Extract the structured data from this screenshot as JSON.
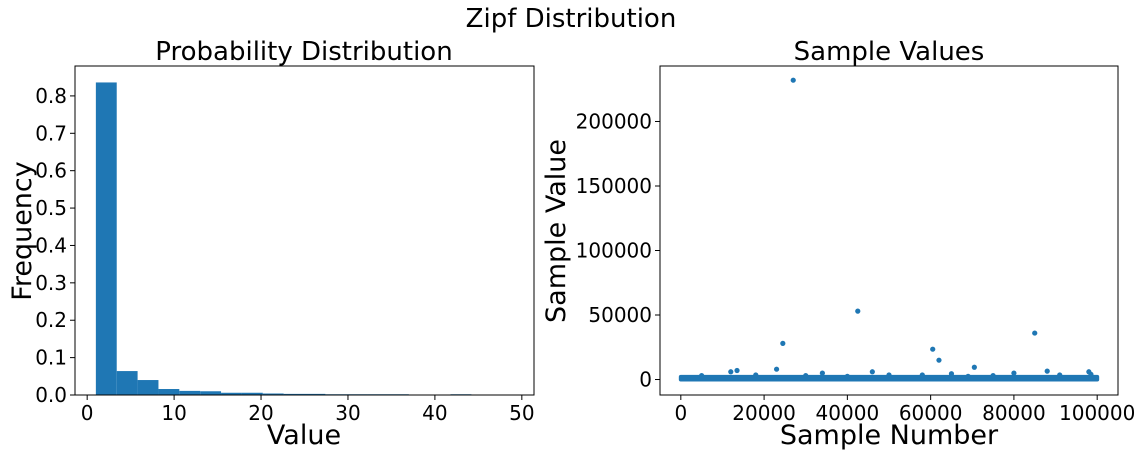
{
  "figure": {
    "suptitle": "Zipf Distribution",
    "series_color": "#1f77b4"
  },
  "chart_data": [
    {
      "type": "bar",
      "title": "Probability Distribution",
      "xlabel": "Value",
      "ylabel": "Frequency",
      "xlim": [
        -1.4,
        51.4
      ],
      "ylim": [
        0,
        0.88
      ],
      "xticks": [
        0,
        10,
        20,
        30,
        40,
        50
      ],
      "yticks": [
        0.0,
        0.1,
        0.2,
        0.3,
        0.4,
        0.5,
        0.6,
        0.7,
        0.8
      ],
      "bins": [
        {
          "x0": 1.0,
          "x1": 3.4,
          "value": 0.836
        },
        {
          "x0": 3.4,
          "x1": 5.8,
          "value": 0.064
        },
        {
          "x0": 5.8,
          "x1": 8.2,
          "value": 0.04
        },
        {
          "x0": 8.2,
          "x1": 10.6,
          "value": 0.016
        },
        {
          "x0": 10.6,
          "x1": 13.0,
          "value": 0.011
        },
        {
          "x0": 13.0,
          "x1": 15.4,
          "value": 0.01
        },
        {
          "x0": 15.4,
          "x1": 17.8,
          "value": 0.006
        },
        {
          "x0": 17.8,
          "x1": 20.2,
          "value": 0.006
        },
        {
          "x0": 20.2,
          "x1": 22.6,
          "value": 0.004
        },
        {
          "x0": 22.6,
          "x1": 25.0,
          "value": 0.003
        },
        {
          "x0": 25.0,
          "x1": 27.4,
          "value": 0.003
        },
        {
          "x0": 27.4,
          "x1": 29.8,
          "value": 0.002
        },
        {
          "x0": 29.8,
          "x1": 32.2,
          "value": 0.002
        },
        {
          "x0": 32.2,
          "x1": 34.6,
          "value": 0.002
        },
        {
          "x0": 34.6,
          "x1": 37.0,
          "value": 0.002
        },
        {
          "x0": 37.0,
          "x1": 39.4,
          "value": 0.001
        },
        {
          "x0": 39.4,
          "x1": 41.8,
          "value": 0.001
        },
        {
          "x0": 41.8,
          "x1": 44.2,
          "value": 0.002
        },
        {
          "x0": 44.2,
          "x1": 46.6,
          "value": 0.001
        },
        {
          "x0": 46.6,
          "x1": 49.0,
          "value": 0.001
        }
      ]
    },
    {
      "type": "scatter",
      "title": "Sample Values",
      "xlabel": "Sample Number",
      "ylabel": "Sample Value",
      "xlim": [
        -5000,
        105000
      ],
      "ylim": [
        -12000,
        243000
      ],
      "xticks": [
        0,
        20000,
        40000,
        60000,
        80000,
        100000
      ],
      "yticks": [
        0,
        50000,
        100000,
        150000,
        200000
      ],
      "points": [
        [
          27000,
          232000
        ],
        [
          42500,
          53000
        ],
        [
          85000,
          36000
        ],
        [
          24500,
          28000
        ],
        [
          60500,
          23500
        ],
        [
          62000,
          15000
        ],
        [
          70500,
          9500
        ],
        [
          23000,
          8000
        ],
        [
          12000,
          6000
        ],
        [
          13500,
          7000
        ],
        [
          34000,
          5000
        ],
        [
          46000,
          6000
        ],
        [
          88000,
          6500
        ],
        [
          98000,
          6000
        ],
        [
          80000,
          5000
        ],
        [
          65000,
          4500
        ],
        [
          58000,
          3500
        ],
        [
          98500,
          4000
        ],
        [
          5000,
          3000
        ],
        [
          18000,
          3500
        ],
        [
          30000,
          3000
        ],
        [
          50000,
          3500
        ],
        [
          75000,
          3000
        ],
        [
          91000,
          3500
        ],
        [
          40000,
          2500
        ],
        [
          69000,
          2500
        ]
      ],
      "baseline_band": {
        "x_range": [
          0,
          100000
        ],
        "y_range": [
          0,
          2000
        ]
      }
    }
  ]
}
